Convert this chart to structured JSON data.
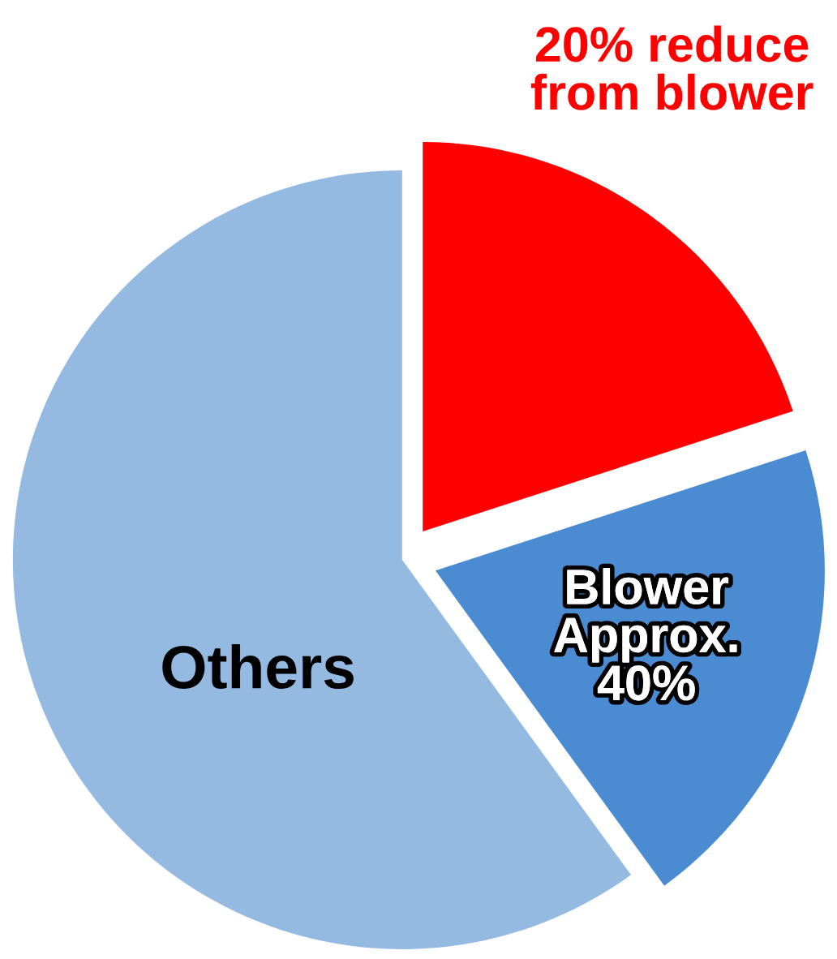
{
  "chart_data": {
    "type": "pie",
    "categories": [
      "20% reduce\nfrom blower",
      "Blower\nApprox.\n40%",
      "Others"
    ],
    "values": [
      20,
      20,
      60
    ],
    "colors": [
      "#ff0000",
      "#4a8bd2",
      "#95bae2"
    ],
    "legend": false
  }
}
